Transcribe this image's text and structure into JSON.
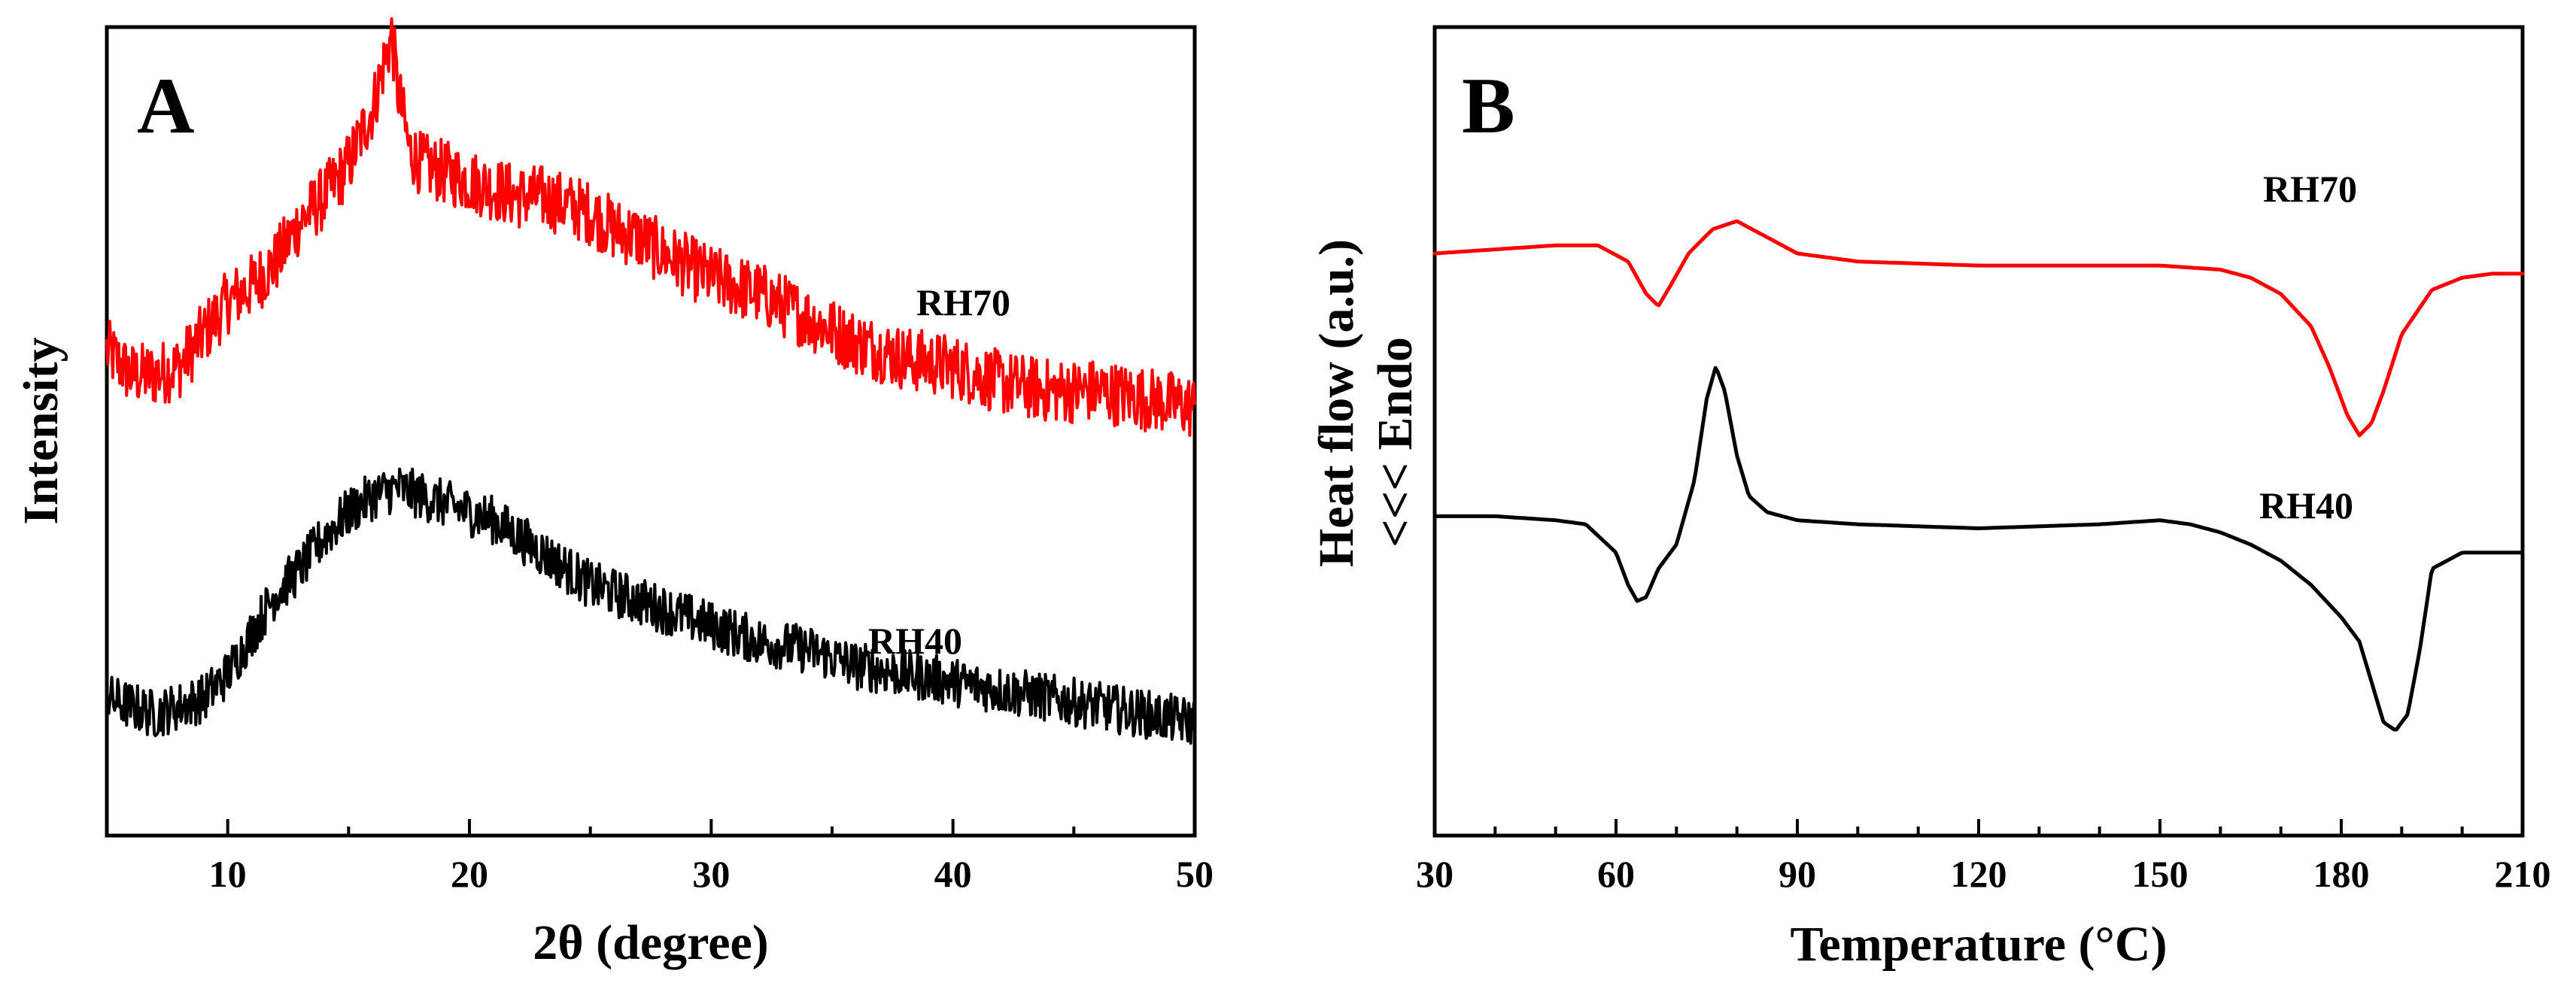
{
  "chart_data": [
    {
      "panel": "A",
      "type": "line",
      "xlabel": "2θ (degree)",
      "ylabel": "Intensity",
      "xlim": [
        5,
        50
      ],
      "ylim": [
        0,
        100
      ],
      "x_ticks": [
        10,
        20,
        30,
        40,
        50
      ],
      "y_ticks_shown": false,
      "grid": false,
      "legend": "inline labels",
      "series": [
        {
          "name": "RH70",
          "color": "#ff0000",
          "x": [
            5,
            6,
            7,
            8,
            9,
            10,
            11,
            12,
            13,
            14,
            15,
            16,
            16.5,
            16.8,
            17,
            17.5,
            18,
            19,
            20,
            21,
            22,
            23,
            24,
            25,
            26,
            27,
            28,
            30,
            32,
            34,
            36,
            38,
            40,
            42,
            44,
            46,
            48,
            50
          ],
          "y": [
            60,
            57,
            57,
            58,
            62,
            66,
            68,
            71,
            76,
            79,
            83,
            90,
            96,
            99,
            93,
            85,
            83,
            82,
            81,
            80,
            79,
            79,
            78,
            77,
            75,
            74,
            72,
            69,
            67,
            64,
            61,
            59,
            58,
            56,
            55,
            55,
            54,
            53
          ]
        },
        {
          "name": "RH40",
          "color": "#000000",
          "x": [
            5,
            6,
            7,
            8,
            9,
            10,
            11,
            12,
            13,
            14,
            15,
            16,
            17,
            18,
            19,
            20,
            21,
            22,
            23,
            24,
            25,
            26,
            28,
            30,
            32,
            34,
            36,
            38,
            40,
            42,
            44,
            46,
            48,
            50
          ],
          "y": [
            17,
            16,
            15,
            16,
            17,
            20,
            25,
            30,
            33,
            37,
            40,
            42,
            43,
            42,
            41,
            40,
            39,
            37,
            35,
            33,
            31,
            30,
            28,
            26,
            24,
            23,
            21,
            20,
            19,
            18,
            17,
            16,
            15,
            14
          ]
        }
      ],
      "annotations": [
        "RH70",
        "RH40"
      ]
    },
    {
      "panel": "B",
      "type": "line",
      "xlabel": "Temperature (°C)",
      "ylabel": "Heat flow (a.u.)",
      "ylabel_annotation": "<<<  Endo",
      "xlim": [
        30,
        210
      ],
      "ylim": [
        0,
        100
      ],
      "x_ticks": [
        30,
        60,
        90,
        120,
        150,
        180,
        210
      ],
      "y_ticks_shown": false,
      "grid": false,
      "legend": "inline labels",
      "series": [
        {
          "name": "RH70",
          "color": "#ff0000",
          "x": [
            30,
            40,
            50,
            57,
            62,
            65,
            67,
            69,
            72,
            76,
            80,
            85,
            90,
            100,
            120,
            140,
            150,
            160,
            165,
            170,
            175,
            178,
            181,
            183,
            185,
            187,
            190,
            195,
            200,
            205,
            210
          ],
          "y": [
            72,
            72.5,
            73,
            73,
            71,
            67,
            65.5,
            68,
            72,
            75,
            76,
            74,
            72,
            71,
            70.5,
            70.5,
            70.5,
            70,
            69,
            67,
            63,
            58,
            52,
            49.5,
            51,
            55,
            62,
            67.5,
            69,
            69.5,
            69.5
          ]
        },
        {
          "name": "RH40",
          "color": "#000000",
          "x": [
            30,
            40,
            50,
            55,
            60,
            62,
            63.5,
            65,
            67,
            70,
            73,
            75,
            76.5,
            78,
            80,
            82,
            85,
            90,
            100,
            120,
            140,
            150,
            155,
            160,
            165,
            170,
            175,
            180,
            183,
            185,
            187,
            189,
            191,
            193,
            195,
            200,
            205,
            210
          ],
          "y": [
            39.5,
            39.5,
            39,
            38.5,
            35,
            31,
            29,
            29.5,
            33,
            36,
            44,
            54,
            58,
            55,
            47,
            42,
            40,
            39,
            38.5,
            38,
            38.5,
            39,
            38.5,
            37.5,
            36,
            34,
            31,
            27,
            24,
            19,
            14,
            13,
            15,
            23,
            33,
            35,
            35,
            35
          ]
        }
      ],
      "annotations": [
        "RH70",
        "RH40"
      ]
    }
  ]
}
